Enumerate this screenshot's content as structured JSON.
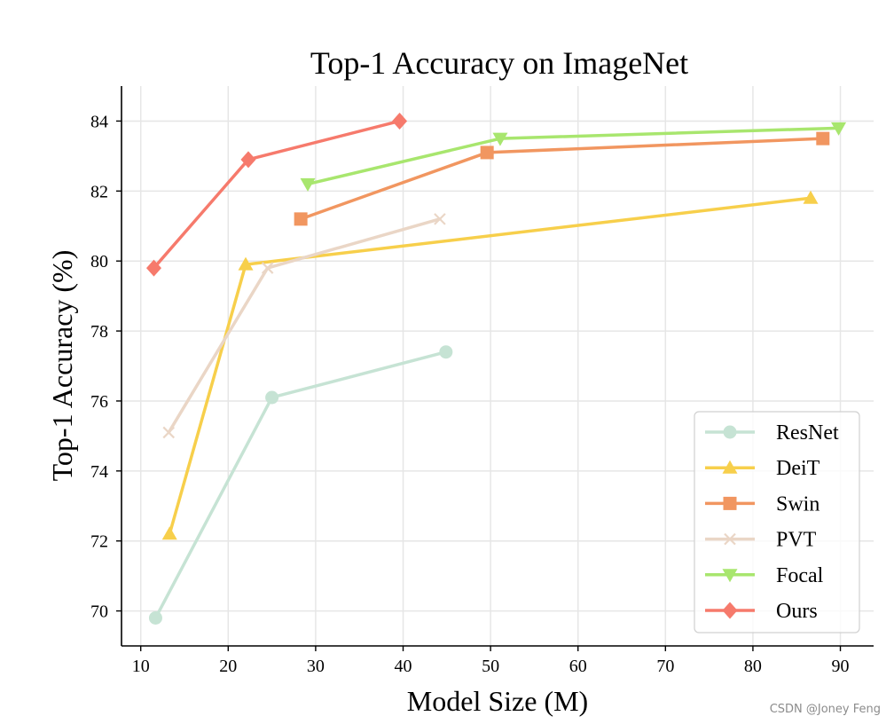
{
  "watermark": "CSDN @Joney Feng",
  "chart_data": {
    "type": "line",
    "title": "Top-1 Accuracy on ImageNet",
    "xlabel": "Model Size (M)",
    "ylabel": "Top-1 Accuracy (%)",
    "xlim": [
      7.8,
      93.8
    ],
    "ylim": [
      69,
      85
    ],
    "xticks": [
      10,
      20,
      30,
      40,
      50,
      60,
      70,
      80,
      90
    ],
    "yticks": [
      70,
      72,
      74,
      76,
      78,
      80,
      82,
      84
    ],
    "grid": true,
    "legend_position": "lower-right",
    "series": [
      {
        "name": "ResNet",
        "marker": "circle",
        "color": "#c6e3d4",
        "x": [
          11.7,
          25.0,
          44.9
        ],
        "y": [
          69.8,
          76.1,
          77.4
        ]
      },
      {
        "name": "DeiT",
        "marker": "triangle-up",
        "color": "#f7cf4b",
        "x": [
          13.3,
          22.0,
          86.6
        ],
        "y": [
          72.2,
          79.9,
          81.8
        ]
      },
      {
        "name": "Swin",
        "marker": "square",
        "color": "#f19660",
        "x": [
          28.3,
          49.6,
          88.0
        ],
        "y": [
          81.2,
          83.1,
          83.5
        ]
      },
      {
        "name": "PVT",
        "marker": "x",
        "color": "#ead6c6",
        "x": [
          13.2,
          24.5,
          44.2
        ],
        "y": [
          75.1,
          79.8,
          81.2
        ]
      },
      {
        "name": "Focal",
        "marker": "triangle-down",
        "color": "#a8e66e",
        "x": [
          29.1,
          51.1,
          89.8
        ],
        "y": [
          82.2,
          83.5,
          83.8
        ]
      },
      {
        "name": "Ours",
        "marker": "diamond",
        "color": "#f67a6c",
        "x": [
          11.5,
          22.3,
          39.6
        ],
        "y": [
          79.8,
          82.9,
          84.0
        ]
      }
    ]
  }
}
